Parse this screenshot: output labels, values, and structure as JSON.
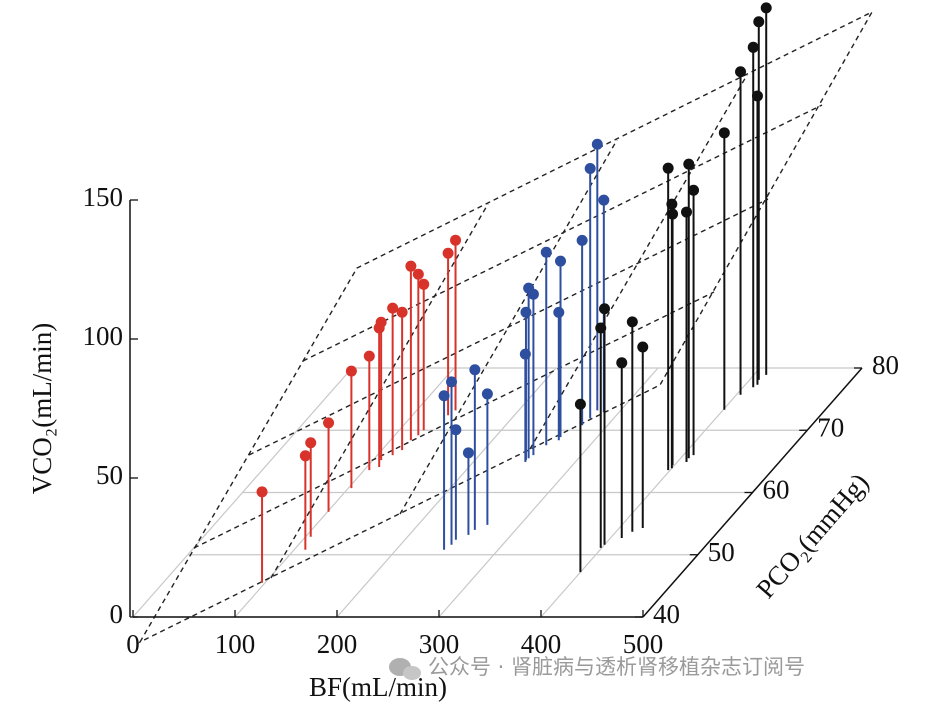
{
  "chart_data": {
    "type": "stem3d",
    "x_label": "BF(mL/min)",
    "y_label": "VCO₂(mL/min)",
    "z_label": "PCO₂(mmHg)",
    "xlim": [
      0,
      500
    ],
    "xticks": [
      0,
      100,
      200,
      300,
      400,
      500
    ],
    "ylim": [
      0,
      150
    ],
    "yticks": [
      0,
      50,
      100,
      150
    ],
    "zlim": [
      40,
      80
    ],
    "zticks": [
      40,
      50,
      60,
      70,
      80
    ],
    "grid": true,
    "series": [
      {
        "color": "#d8332a",
        "x": [
          97,
          111,
          105,
          101,
          103,
          105,
          112,
          108,
          115,
          120,
          120,
          123,
          124,
          135,
          138
        ],
        "z": [
          45.5,
          50.8,
          52.9,
          56.9,
          60.7,
          63.6,
          64.1,
          65.2,
          66.0,
          66.8,
          68.4,
          69.2,
          70.0,
          72.4,
          73.2
        ],
        "values": [
          32.7,
          33.8,
          33.8,
          32.0,
          42.1,
          41.0,
          50.0,
          49.6,
          52.9,
          49.6,
          62.6,
          57.9,
          52.5,
          58.3,
          61.2
        ]
      },
      {
        "color": "#2e4f9f",
        "x": [
          247,
          250,
          250,
          258,
          260,
          268,
          251,
          250,
          251,
          253,
          257,
          265,
          264,
          275,
          277,
          277,
          285
        ],
        "z": [
          50.8,
          51.6,
          52.4,
          53.2,
          54.0,
          54.8,
          64.9,
          65.2,
          65.5,
          66.0,
          67.6,
          68.4,
          68.9,
          70.8,
          71.9,
          73.2,
          72.9
        ],
        "values": [
          55.4,
          58.6,
          39.6,
          29.5,
          57.6,
          47.1,
          38.8,
          53.2,
          61.2,
          57.9,
          69.4,
          46.0,
          63.3,
          66.5,
          89.9,
          95.7,
          76.3
        ]
      },
      {
        "color": "#111111",
        "x": [
          400,
          399,
          400,
          411,
          416,
          423,
          398,
          400,
          398,
          409,
          408,
          410,
          401,
          404,
          410,
          412,
          409,
          412
        ],
        "z": [
          47.2,
          51.1,
          51.6,
          52.7,
          53.7,
          54.3,
          63.6,
          63.9,
          64.4,
          64.9,
          65.5,
          66.0,
          73.3,
          75.7,
          76.9,
          77.3,
          78.1,
          78.9
        ],
        "values": [
          60.4,
          79.1,
          84.9,
          63.0,
          75.5,
          65.1,
          108.6,
          95.0,
          90.3,
          89.9,
          105.8,
          95.3,
          99.6,
          116.2,
          122.3,
          103.9,
          128.8,
          132.0
        ]
      }
    ]
  },
  "watermark": "公众号 · 肾脏病与透析肾移植杂志订阅号"
}
